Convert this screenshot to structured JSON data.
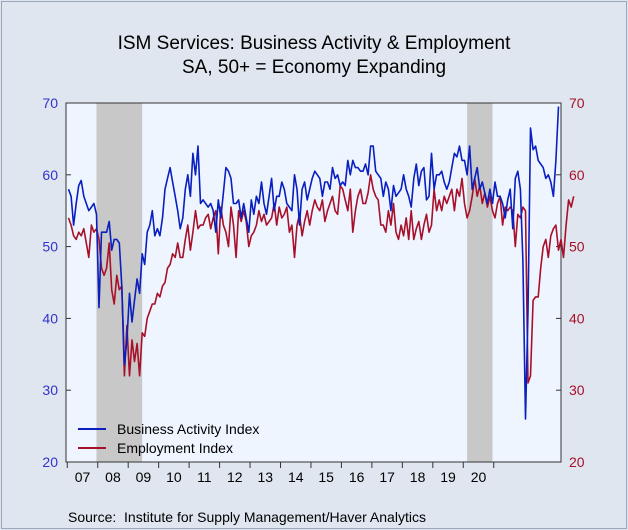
{
  "title": "ISM Services: Business Activity & Employment",
  "subtitle": "SA, 50+ = Economy Expanding",
  "source": "Source:  Institute for Supply Management/Haver Analytics",
  "colors": {
    "business": "#0a1fbf",
    "employment": "#a8102a",
    "recession": "#c8c8c8",
    "plot_bg": "#eef5ff",
    "left_axis": "#3333cc",
    "right_axis": "#a8102a"
  },
  "chart_data": {
    "type": "line",
    "ylim": [
      20,
      70
    ],
    "yticks": [
      20,
      30,
      40,
      50,
      60,
      70
    ],
    "ytick_labels": [
      "20",
      "30",
      "40",
      "50",
      "60",
      "70"
    ],
    "x_start": "2007-01",
    "xticks": [
      "07",
      "08",
      "09",
      "10",
      "11",
      "12",
      "13",
      "14",
      "15",
      "16",
      "17",
      "18",
      "19",
      "20"
    ],
    "recessions": [
      [
        "2007-12",
        "2009-06"
      ],
      [
        "2020-02",
        "2020-12"
      ]
    ],
    "legend": "bottom-left",
    "series": [
      {
        "name": "Business Activity Index",
        "values": [
          58,
          57,
          53,
          56,
          58.5,
          59.2,
          57,
          56,
          55,
          55.5,
          56,
          54.5,
          41.5,
          52,
          52,
          52,
          53.5,
          49.5,
          51,
          51,
          50.5,
          44.5,
          33.5,
          37,
          43.5,
          39.5,
          42.5,
          45.5,
          43.5,
          49,
          47.5,
          52,
          53,
          55,
          51.5,
          52.5,
          51.5,
          54,
          58,
          59.5,
          61,
          59,
          57,
          55,
          52.5,
          54,
          58,
          60,
          57,
          63,
          60,
          64,
          56,
          56.5,
          56,
          55.5,
          56,
          55,
          52,
          56.5,
          54,
          57.5,
          61,
          60.5,
          59.5,
          56,
          56,
          56.5,
          54,
          56,
          54,
          52,
          56.5,
          54.5,
          57,
          56,
          59,
          56,
          54.5,
          57,
          59.5,
          55,
          57,
          57,
          59,
          58,
          56,
          55.5,
          55,
          60,
          58,
          53,
          58,
          59,
          56.5,
          58,
          59.5,
          60.5,
          60,
          59.5,
          57,
          59,
          59,
          58,
          61,
          59.5,
          60,
          58.5,
          59,
          58.5,
          62,
          60,
          62,
          61,
          61,
          60.5,
          60.5,
          61.5,
          60,
          64,
          64,
          60.5,
          60,
          59.5,
          57,
          59,
          58,
          55,
          58.5,
          57,
          57.5,
          58,
          60,
          58,
          57,
          55.5,
          59.5,
          61.5,
          58.5,
          60.5,
          61,
          56.5,
          57,
          63,
          58,
          60,
          60,
          60.5,
          59,
          58,
          59,
          61,
          63,
          62.5,
          64,
          62,
          62,
          60,
          64,
          58,
          59.5,
          61,
          58,
          59,
          57.5,
          56,
          58,
          56,
          59,
          57,
          57,
          56,
          54,
          56.5,
          58,
          52.5,
          59.5,
          60.5,
          58,
          48,
          26,
          41,
          66.5,
          63.5,
          64,
          62,
          61.5,
          61,
          59.5,
          60,
          59,
          57,
          62,
          69.5
        ]
      },
      {
        "name": "Employment Index",
        "values": [
          54,
          53,
          51.5,
          51,
          52,
          51.5,
          52.5,
          50.5,
          48.5,
          53,
          52,
          52.5,
          51,
          47,
          46,
          47,
          50.5,
          44,
          42,
          46,
          44,
          44.5,
          32,
          39,
          32,
          37,
          34,
          36.5,
          32,
          38,
          37.5,
          40,
          41,
          42,
          42,
          43.5,
          43,
          44.5,
          45,
          47,
          47.5,
          49,
          48.5,
          50.5,
          48.5,
          48.5,
          51,
          53,
          49.5,
          52,
          55,
          52.5,
          53,
          53,
          54,
          54.5,
          52.5,
          54,
          55,
          49,
          55.5,
          53,
          52,
          50,
          55.5,
          53,
          48.5,
          55,
          53.5,
          55,
          53.5,
          50,
          51.5,
          52,
          53,
          55,
          53.5,
          54.5,
          53,
          53.5,
          54,
          56,
          53,
          55.5,
          54,
          54.5,
          55.5,
          52,
          53,
          48.5,
          53,
          54.5,
          51.5,
          53.5,
          55,
          53,
          55,
          56.5,
          55.5,
          55,
          56.5,
          53.5,
          55,
          56,
          57,
          55,
          54.5,
          58.5,
          58,
          56.5,
          55,
          58,
          52,
          55,
          57,
          58,
          56,
          56,
          57.5,
          60,
          58,
          57,
          56.5,
          53,
          53,
          52,
          55,
          53,
          56,
          52,
          51,
          53,
          51.5,
          54,
          51,
          55,
          51,
          52.5,
          53.5,
          51,
          53,
          54.5,
          52,
          53,
          58,
          55,
          56.5,
          55,
          57,
          56,
          57,
          58,
          55,
          58,
          57,
          59.5,
          56,
          54,
          55,
          57,
          59.5,
          57,
          58.5,
          56,
          57.5,
          55.5,
          57,
          55,
          54,
          56,
          57,
          53,
          55.5,
          55,
          55.5,
          55,
          50,
          54.5,
          54,
          55.5,
          55,
          31,
          32,
          42.5,
          43,
          43,
          47,
          50,
          51,
          48.5,
          51.5,
          52.5,
          53,
          49.5,
          51,
          48.5,
          53,
          56.5,
          55.5,
          57
        ]
      }
    ]
  }
}
